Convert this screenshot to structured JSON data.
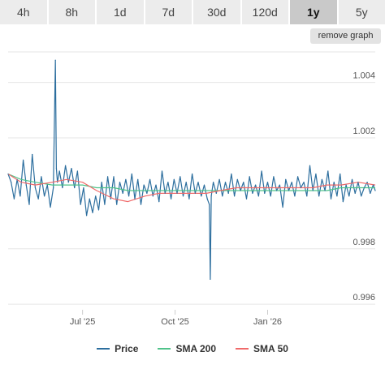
{
  "tabs": [
    {
      "label": "4h",
      "active": false
    },
    {
      "label": "8h",
      "active": false
    },
    {
      "label": "1d",
      "active": false
    },
    {
      "label": "7d",
      "active": false
    },
    {
      "label": "30d",
      "active": false
    },
    {
      "label": "120d",
      "active": false
    },
    {
      "label": "1y",
      "active": true
    },
    {
      "label": "5y",
      "active": false
    }
  ],
  "remove_graph_label": "remove graph",
  "colors": {
    "price": "#2c6e9e",
    "sma200": "#4fc38a",
    "sma50": "#f06a6a",
    "grid": "#e6e6e6"
  },
  "chart_data": {
    "type": "line",
    "x_range": [
      "2025-04-18",
      "2026-04-18"
    ],
    "x_ticks": [
      {
        "date": "2025-07-01",
        "label": "Jul '25"
      },
      {
        "date": "2025-10-01",
        "label": "Oct '25"
      },
      {
        "date": "2026-01-01",
        "label": "Jan '26"
      }
    ],
    "ylim": [
      0.9958,
      1.0051
    ],
    "y_ticks": [
      0.996,
      0.998,
      1.002,
      1.004
    ],
    "y_tick_labels": [
      "0.996",
      "0.998",
      "1.002",
      "1.004"
    ],
    "grid": true,
    "legend_position": "bottom",
    "series": [
      {
        "name": "Price",
        "x": [
          "2025-04-18",
          "2025-04-21",
          "2025-04-24",
          "2025-04-27",
          "2025-04-30",
          "2025-05-03",
          "2025-05-06",
          "2025-05-09",
          "2025-05-12",
          "2025-05-15",
          "2025-05-18",
          "2025-05-21",
          "2025-05-24",
          "2025-05-27",
          "2025-05-30",
          "2025-06-02",
          "2025-06-04",
          "2025-06-05",
          "2025-06-06",
          "2025-06-08",
          "2025-06-11",
          "2025-06-14",
          "2025-06-17",
          "2025-06-20",
          "2025-06-23",
          "2025-06-26",
          "2025-06-29",
          "2025-07-02",
          "2025-07-05",
          "2025-07-08",
          "2025-07-11",
          "2025-07-14",
          "2025-07-17",
          "2025-07-20",
          "2025-07-23",
          "2025-07-26",
          "2025-07-29",
          "2025-08-01",
          "2025-08-04",
          "2025-08-07",
          "2025-08-10",
          "2025-08-13",
          "2025-08-16",
          "2025-08-19",
          "2025-08-22",
          "2025-08-25",
          "2025-08-28",
          "2025-08-31",
          "2025-09-03",
          "2025-09-06",
          "2025-09-09",
          "2025-09-12",
          "2025-09-15",
          "2025-09-18",
          "2025-09-21",
          "2025-09-24",
          "2025-09-27",
          "2025-09-30",
          "2025-10-03",
          "2025-10-06",
          "2025-10-09",
          "2025-10-12",
          "2025-10-15",
          "2025-10-18",
          "2025-10-21",
          "2025-10-24",
          "2025-10-27",
          "2025-10-30",
          "2025-11-02",
          "2025-11-04",
          "2025-11-05",
          "2025-11-06",
          "2025-11-08",
          "2025-11-11",
          "2025-11-14",
          "2025-11-17",
          "2025-11-20",
          "2025-11-23",
          "2025-11-26",
          "2025-11-29",
          "2025-12-02",
          "2025-12-05",
          "2025-12-08",
          "2025-12-11",
          "2025-12-14",
          "2025-12-17",
          "2025-12-20",
          "2025-12-23",
          "2025-12-26",
          "2025-12-29",
          "2026-01-01",
          "2026-01-04",
          "2026-01-07",
          "2026-01-10",
          "2026-01-13",
          "2026-01-16",
          "2026-01-19",
          "2026-01-22",
          "2026-01-25",
          "2026-01-28",
          "2026-01-31",
          "2026-02-03",
          "2026-02-06",
          "2026-02-09",
          "2026-02-12",
          "2026-02-15",
          "2026-02-18",
          "2026-02-21",
          "2026-02-24",
          "2026-02-27",
          "2026-03-02",
          "2026-03-05",
          "2026-03-08",
          "2026-03-11",
          "2026-03-14",
          "2026-03-17",
          "2026-03-20",
          "2026-03-23",
          "2026-03-26",
          "2026-03-29",
          "2026-04-01",
          "2026-04-04",
          "2026-04-07",
          "2026-04-10",
          "2026-04-13",
          "2026-04-16",
          "2026-04-18"
        ],
        "values": [
          1.0007,
          1.0004,
          0.9998,
          1.0005,
          0.9999,
          1.0012,
          1.0003,
          0.9996,
          1.0014,
          1.0002,
          0.9998,
          1.0006,
          0.9999,
          1.0003,
          0.9995,
          1.0002,
          1.0048,
          1.0009,
          1.0004,
          1.0008,
          1.0002,
          1.001,
          1.0004,
          1.0009,
          1.0002,
          1.0008,
          0.9996,
          1.0002,
          0.9992,
          0.9998,
          0.9993,
          0.9999,
          0.9994,
          1.0004,
          0.9996,
          1.0006,
          0.9998,
          1.0006,
          0.9996,
          1.0004,
          1.0,
          1.0005,
          0.9999,
          1.0007,
          0.9998,
          1.0005,
          0.9996,
          1.0003,
          1.0,
          1.0005,
          0.9999,
          1.0003,
          0.9997,
          1.0008,
          1.0,
          1.0004,
          0.9998,
          1.0005,
          1.0,
          1.0006,
          0.9999,
          1.0004,
          0.9998,
          1.0007,
          1.0,
          1.0004,
          0.9999,
          1.0003,
          0.9998,
          0.9996,
          0.9969,
          0.9999,
          1.0004,
          1.0,
          1.0005,
          0.9999,
          1.0004,
          1.0,
          1.0007,
          0.9999,
          1.0005,
          1.0001,
          1.0004,
          0.9998,
          1.0006,
          1.0,
          1.0003,
          0.9999,
          1.0008,
          1.0,
          1.0004,
          0.9999,
          1.0006,
          1.0001,
          1.0003,
          0.9995,
          1.0005,
          1.0001,
          1.0004,
          0.9999,
          1.0006,
          1.0002,
          1.0004,
          0.9999,
          1.001,
          1.0001,
          1.0007,
          0.9999,
          1.0005,
          1.0001,
          1.0008,
          0.9998,
          1.0004,
          0.9999,
          1.0007,
          0.9997,
          1.0003,
          0.9999,
          1.0005,
          1.0,
          1.0004,
          0.9999,
          1.0002,
          1.0004,
          1.0,
          1.0003,
          1.0001
        ]
      },
      {
        "name": "SMA 200",
        "x": [
          "2025-04-18",
          "2025-05-01",
          "2025-05-15",
          "2025-06-01",
          "2025-06-15",
          "2025-07-01",
          "2025-07-15",
          "2025-08-01",
          "2025-08-15",
          "2025-09-01",
          "2025-09-15",
          "2025-10-01",
          "2025-10-15",
          "2025-11-01",
          "2025-11-15",
          "2025-12-01",
          "2025-12-15",
          "2026-01-01",
          "2026-01-15",
          "2026-02-01",
          "2026-02-15",
          "2026-03-01",
          "2026-03-15",
          "2026-04-01",
          "2026-04-18"
        ],
        "values": [
          1.0007,
          1.0005,
          1.0004,
          1.0003,
          1.0003,
          1.0003,
          1.0002,
          1.0002,
          1.0001,
          1.0001,
          1.0001,
          1.0001,
          1.0001,
          1.0001,
          1.0001,
          1.0001,
          1.0001,
          1.0001,
          1.0001,
          1.0001,
          1.0001,
          1.0001,
          1.0002,
          1.0002,
          1.0002
        ]
      },
      {
        "name": "SMA 50",
        "x": [
          "2025-04-18",
          "2025-05-01",
          "2025-05-15",
          "2025-06-01",
          "2025-06-15",
          "2025-07-01",
          "2025-07-15",
          "2025-08-01",
          "2025-08-15",
          "2025-09-01",
          "2025-09-15",
          "2025-10-01",
          "2025-10-15",
          "2025-11-01",
          "2025-11-15",
          "2025-12-01",
          "2025-12-15",
          "2026-01-01",
          "2026-01-15",
          "2026-02-01",
          "2026-02-15",
          "2026-03-01",
          "2026-03-15",
          "2026-04-01",
          "2026-04-18"
        ],
        "values": [
          1.0007,
          1.0004,
          1.0003,
          1.0004,
          1.0005,
          1.0004,
          1.0001,
          0.9998,
          0.9997,
          0.9999,
          1.0,
          1.0,
          1.0,
          1.0,
          1.0001,
          1.0002,
          1.0002,
          1.0002,
          1.0002,
          1.0002,
          1.0002,
          1.0003,
          1.0003,
          1.0004,
          1.0003
        ]
      }
    ]
  }
}
